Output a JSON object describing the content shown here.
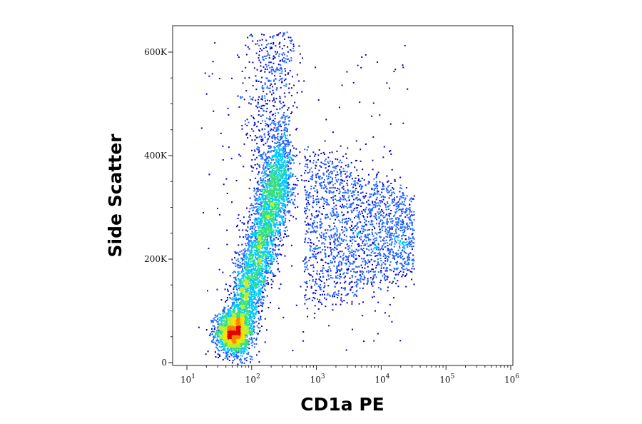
{
  "chart_data": {
    "type": "scatter",
    "subtype": "flow-cytometry-density-dot-plot",
    "xlabel": "CD1a PE",
    "ylabel": "Side Scatter",
    "x_scale": "log",
    "xlim": [
      10,
      1000000
    ],
    "ylim": [
      0,
      650000
    ],
    "x_ticks": [
      {
        "value": 10,
        "base": "10",
        "exp": "1"
      },
      {
        "value": 100,
        "base": "10",
        "exp": "2"
      },
      {
        "value": 1000,
        "base": "10",
        "exp": "3"
      },
      {
        "value": 10000,
        "base": "10",
        "exp": "4"
      },
      {
        "value": 100000,
        "base": "10",
        "exp": "5"
      },
      {
        "value": 1000000,
        "base": "10",
        "exp": "6"
      }
    ],
    "y_ticks": [
      {
        "value": 0,
        "label": "0"
      },
      {
        "value": 200000,
        "label": "200K"
      },
      {
        "value": 400000,
        "label": "400K"
      },
      {
        "value": 600000,
        "label": "600K"
      }
    ],
    "density_colors": [
      "#0000cc",
      "#1e64ff",
      "#00c8ff",
      "#33e080",
      "#b8f028",
      "#ffe000",
      "#ff8000",
      "#e00000"
    ],
    "populations": [
      {
        "name": "low-ssc cluster",
        "x_center": 50,
        "y_center": 60000,
        "x_spread_log": 0.16,
        "y_spread": 22000,
        "density": "high"
      },
      {
        "name": "main diagonal band",
        "x_range": [
          60,
          400
        ],
        "y_range": [
          80000,
          450000
        ],
        "density": "medium-high"
      },
      {
        "name": "cd1a-positive spread",
        "x_range": [
          600,
          30000
        ],
        "y_range": [
          120000,
          400000
        ],
        "density": "low"
      }
    ],
    "grid": false,
    "legend": "none"
  }
}
